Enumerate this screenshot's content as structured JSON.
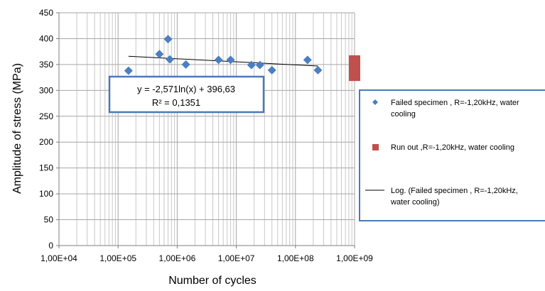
{
  "chart_data": {
    "type": "scatter",
    "title": "",
    "xlabel": "Number  of cycles",
    "ylabel": "Amplitude of stress (MPa)",
    "x_scale": "log",
    "xlim": [
      10000,
      1000000000
    ],
    "ylim": [
      0,
      450
    ],
    "y_ticks": [
      0,
      50,
      100,
      150,
      200,
      250,
      300,
      350,
      400,
      450
    ],
    "x_tick_labels": [
      "1,00E+04",
      "1,00E+05",
      "1,00E+06",
      "1,00E+07",
      "1,00E+08",
      "1,00E+09"
    ],
    "grid": true,
    "legend_position": "right",
    "series": [
      {
        "name": "Failed specimen , R=-1,20kHz, water cooling",
        "marker": "diamond",
        "color": "#4a7fc1",
        "points": [
          {
            "x": 150000,
            "y": 338
          },
          {
            "x": 500000,
            "y": 370
          },
          {
            "x": 700000,
            "y": 399
          },
          {
            "x": 750000,
            "y": 360
          },
          {
            "x": 1400000,
            "y": 350
          },
          {
            "x": 5000000,
            "y": 359
          },
          {
            "x": 8000000,
            "y": 359
          },
          {
            "x": 18000000,
            "y": 349
          },
          {
            "x": 25000000,
            "y": 349
          },
          {
            "x": 40000000,
            "y": 339
          },
          {
            "x": 160000000,
            "y": 359
          },
          {
            "x": 240000000,
            "y": 339
          }
        ]
      },
      {
        "name": "Run out ,R=-1,20kHz, water cooling",
        "marker": "square",
        "color": "#c0504d",
        "points": [
          {
            "x": 1000000000,
            "y": 361
          },
          {
            "x": 1000000000,
            "y": 352
          },
          {
            "x": 1000000000,
            "y": 343
          },
          {
            "x": 1000000000,
            "y": 334
          },
          {
            "x": 1000000000,
            "y": 325
          }
        ]
      },
      {
        "name": "Log. (Failed specimen , R=-1,20kHz, water cooling)",
        "type": "line",
        "color": "#000000",
        "x": [
          150000,
          240000000
        ],
        "formula": {
          "a": -2.571,
          "b": 396.63
        }
      }
    ],
    "annotation": {
      "equation": "y = -2,571ln(x) + 396,63",
      "r_squared": "R² = 0,1351"
    },
    "legend": [
      {
        "marker": "diamond",
        "color": "#4a7fc1",
        "lines": [
          "Failed specimen , R=-1,20kHz, water",
          "cooling"
        ]
      },
      {
        "marker": "square",
        "color": "#c0504d",
        "lines": [
          "Run out ,R=-1,20kHz, water cooling"
        ]
      },
      {
        "marker": "line",
        "color": "#000000",
        "lines": [
          "Log. (Failed specimen , R=-1,20kHz,",
          "water cooling)"
        ]
      }
    ]
  }
}
